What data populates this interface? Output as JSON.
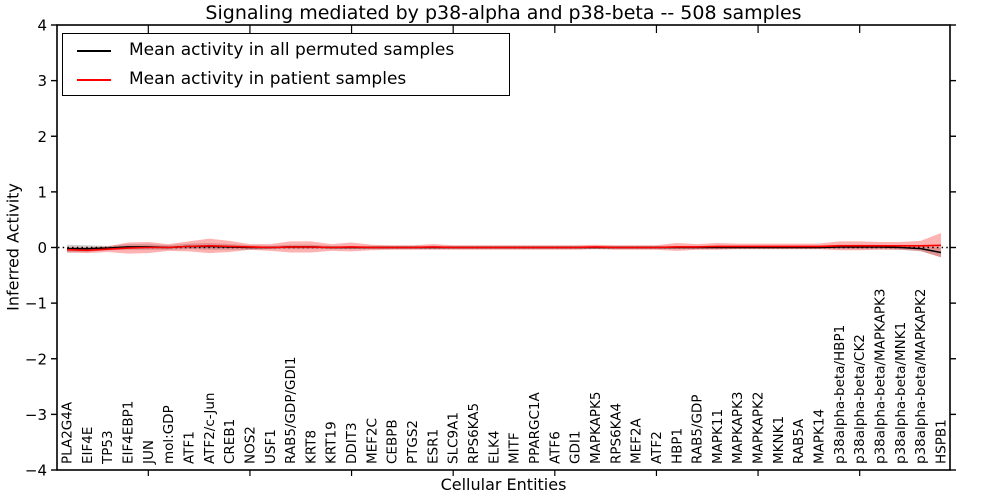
{
  "figure": {
    "title": "Signaling mediated by p38-alpha and p38-beta -- 508 samples",
    "xlabel": "Cellular Entities",
    "ylabel": "Inferred Activity"
  },
  "legend": {
    "entries": [
      {
        "label": "Mean activity in all permuted samples",
        "color": "#000000"
      },
      {
        "label": "Mean activity in patient samples",
        "color": "#ff0000"
      }
    ]
  },
  "chart_data": {
    "type": "line",
    "title": "Signaling mediated by p38-alpha and p38-beta -- 508 samples",
    "xlabel": "Cellular Entities",
    "ylabel": "Inferred Activity",
    "ylim": [
      -4,
      4
    ],
    "yticks": [
      -4,
      -3,
      -2,
      -1,
      0,
      1,
      2,
      3,
      4
    ],
    "grid": false,
    "legend_position": "upper left",
    "zero_line": {
      "style": "dotted",
      "color": "#000000",
      "y": 0
    },
    "x_major_tick_every": 5,
    "categories": [
      "PLA2G4A",
      "EIF4E",
      "TP53",
      "EIF4EBP1",
      "JUN",
      "mol:GDP",
      "ATF1",
      "ATF2/c-Jun",
      "CREB1",
      "NOS2",
      "USF1",
      "RAB5/GDP/GDI1",
      "KRT8",
      "KRT19",
      "DDIT3",
      "MEF2C",
      "CEBPB",
      "PTGS2",
      "ESR1",
      "SLC9A1",
      "RPS6KA5",
      "ELK4",
      "MITF",
      "PPARGC1A",
      "ATF6",
      "GDI1",
      "MAPKAPK5",
      "RPS6KA4",
      "MEF2A",
      "ATF2",
      "HBP1",
      "RAB5/GDP",
      "MAPK11",
      "MAPKAPK3",
      "MAPKAPK2",
      "MKNK1",
      "RAB5A",
      "MAPK14",
      "p38alpha-beta/HBP1",
      "p38alpha-beta/CK2",
      "p38alpha-beta/MAPKAPK3",
      "p38alpha-beta/MNK1",
      "p38alpha-beta/MAPKAPK2",
      "HSPB1"
    ],
    "series": [
      {
        "name": "Mean activity in all permuted samples",
        "color": "#000000",
        "band_color": "rgba(0,0,0,0.18)",
        "values": [
          -0.02,
          -0.02,
          -0.01,
          0.01,
          0.01,
          0.0,
          0.02,
          0.02,
          0.01,
          0.0,
          0.0,
          0.01,
          0.01,
          0.0,
          0.0,
          0.0,
          0.0,
          0.0,
          0.0,
          0.0,
          0.0,
          0.0,
          0.0,
          0.0,
          0.0,
          0.0,
          0.0,
          0.0,
          0.0,
          0.0,
          0.0,
          0.0,
          0.0,
          0.0,
          0.0,
          0.0,
          0.0,
          0.0,
          0.01,
          0.01,
          0.01,
          0.0,
          -0.02,
          -0.09
        ],
        "band_std": [
          0.07,
          0.06,
          0.04,
          0.05,
          0.05,
          0.04,
          0.05,
          0.06,
          0.05,
          0.04,
          0.03,
          0.04,
          0.04,
          0.03,
          0.03,
          0.03,
          0.03,
          0.03,
          0.03,
          0.03,
          0.03,
          0.03,
          0.03,
          0.03,
          0.03,
          0.03,
          0.03,
          0.03,
          0.03,
          0.03,
          0.03,
          0.03,
          0.03,
          0.03,
          0.03,
          0.03,
          0.03,
          0.03,
          0.04,
          0.04,
          0.04,
          0.04,
          0.05,
          0.08
        ]
      },
      {
        "name": "Mean activity in patient samples",
        "color": "#ff0000",
        "band_color": "rgba(255,0,0,0.30)",
        "values": [
          -0.04,
          -0.05,
          -0.03,
          -0.01,
          0.0,
          0.0,
          0.02,
          0.03,
          0.02,
          0.01,
          0.0,
          0.01,
          0.01,
          0.0,
          0.01,
          0.0,
          0.0,
          0.0,
          0.01,
          0.0,
          0.0,
          0.0,
          0.0,
          0.0,
          0.0,
          0.0,
          0.01,
          0.0,
          0.0,
          0.0,
          0.01,
          0.01,
          0.02,
          0.02,
          0.02,
          0.02,
          0.02,
          0.02,
          0.03,
          0.03,
          0.03,
          0.03,
          0.03,
          0.04
        ],
        "band_std": [
          0.05,
          0.05,
          0.05,
          0.1,
          0.1,
          0.06,
          0.09,
          0.13,
          0.1,
          0.05,
          0.06,
          0.1,
          0.1,
          0.06,
          0.08,
          0.05,
          0.04,
          0.04,
          0.05,
          0.04,
          0.04,
          0.04,
          0.04,
          0.04,
          0.04,
          0.04,
          0.04,
          0.04,
          0.04,
          0.04,
          0.07,
          0.05,
          0.06,
          0.05,
          0.05,
          0.05,
          0.05,
          0.05,
          0.08,
          0.08,
          0.07,
          0.07,
          0.09,
          0.22
        ]
      }
    ]
  }
}
